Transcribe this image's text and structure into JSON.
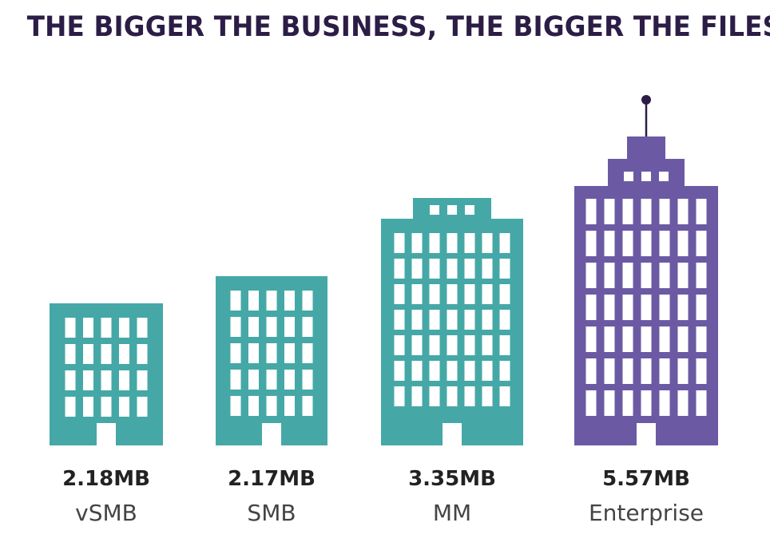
{
  "chart_data": {
    "type": "bar",
    "title": "THE BIGGER THE BUSINESS, THE BIGGER THE FILES",
    "categories": [
      "vSMB",
      "SMB",
      "MM",
      "Enterprise"
    ],
    "value_labels": [
      "2.18MB",
      "2.17MB",
      "3.35MB",
      "5.57MB"
    ],
    "series": [
      {
        "values": [
          2.18,
          2.17,
          3.35,
          5.57
        ]
      }
    ],
    "unit": "MB",
    "bar_colors": [
      "#45a8a6",
      "#45a8a6",
      "#45a8a6",
      "#6b5aa3"
    ],
    "grid": false,
    "legend": "none"
  },
  "colors": {
    "title": "#2c1d46",
    "teal": "#45a8a6",
    "purple": "#6b5aa3",
    "window": "#ffffff",
    "antenna": "#2c1d46"
  },
  "icon": "office-building-icon"
}
